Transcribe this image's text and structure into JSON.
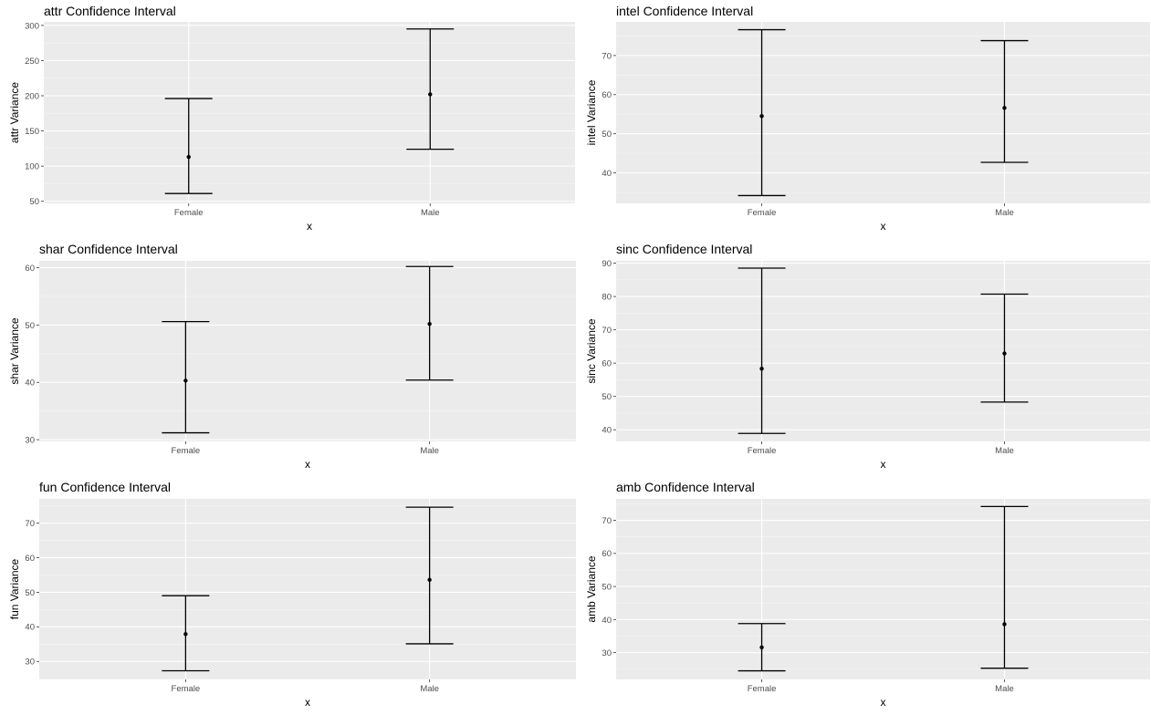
{
  "colors": {
    "panel_bg": "#EBEBEB",
    "grid_major": "#FFFFFF",
    "grid_minor": "#F5F5F5",
    "marks": "#000000",
    "tick_label": "#4D4D4D"
  },
  "chart_data": [
    {
      "type": "errorbar",
      "title": "attr Confidence Interval",
      "xlabel": "x",
      "ylabel": "attr Variance",
      "categories": [
        "Female",
        "Male"
      ],
      "yticks": [
        50,
        100,
        150,
        200,
        250,
        300
      ],
      "ylim": [
        47,
        305
      ],
      "points": [
        {
          "category": "Female",
          "value": 113,
          "lower": 61,
          "upper": 196
        },
        {
          "category": "Male",
          "value": 202,
          "lower": 124,
          "upper": 295
        }
      ],
      "grid": true
    },
    {
      "type": "errorbar",
      "title": "intel Confidence Interval",
      "xlabel": "x",
      "ylabel": "intel Variance",
      "categories": [
        "Female",
        "Male"
      ],
      "yticks": [
        40,
        50,
        60,
        70
      ],
      "ylim": [
        32.2,
        78.6
      ],
      "points": [
        {
          "category": "Female",
          "value": 54.5,
          "lower": 34.2,
          "upper": 76.6
        },
        {
          "category": "Male",
          "value": 56.6,
          "lower": 42.7,
          "upper": 73.8
        }
      ],
      "grid": true
    },
    {
      "type": "errorbar",
      "title": "shar Confidence Interval",
      "xlabel": "x",
      "ylabel": "shar Variance",
      "categories": [
        "Female",
        "Male"
      ],
      "yticks": [
        30,
        40,
        50,
        60
      ],
      "ylim": [
        29.7,
        61.2
      ],
      "points": [
        {
          "category": "Female",
          "value": 40.3,
          "lower": 31.2,
          "upper": 50.6
        },
        {
          "category": "Male",
          "value": 50.2,
          "lower": 40.4,
          "upper": 60.2
        }
      ],
      "grid": true
    },
    {
      "type": "errorbar",
      "title": "sinc Confidence Interval",
      "xlabel": "x",
      "ylabel": "sinc Variance",
      "categories": [
        "Female",
        "Male"
      ],
      "yticks": [
        40,
        50,
        60,
        70,
        80,
        90
      ],
      "ylim": [
        36.5,
        90.7
      ],
      "points": [
        {
          "category": "Female",
          "value": 58.3,
          "lower": 38.9,
          "upper": 88.5
        },
        {
          "category": "Male",
          "value": 62.9,
          "lower": 48.3,
          "upper": 80.7
        }
      ],
      "grid": true
    },
    {
      "type": "errorbar",
      "title": "fun Confidence Interval",
      "xlabel": "x",
      "ylabel": "fun Variance",
      "categories": [
        "Female",
        "Male"
      ],
      "yticks": [
        30,
        40,
        50,
        60,
        70
      ],
      "ylim": [
        24.8,
        77.0
      ],
      "points": [
        {
          "category": "Female",
          "value": 37.9,
          "lower": 27.3,
          "upper": 49.0
        },
        {
          "category": "Male",
          "value": 53.6,
          "lower": 35.1,
          "upper": 74.6
        }
      ],
      "grid": true
    },
    {
      "type": "errorbar",
      "title": "amb Confidence Interval",
      "xlabel": "x",
      "ylabel": "amb Variance",
      "categories": [
        "Female",
        "Male"
      ],
      "yticks": [
        30,
        40,
        50,
        60,
        70
      ],
      "ylim": [
        21.9,
        76.5
      ],
      "points": [
        {
          "category": "Female",
          "value": 31.6,
          "lower": 24.5,
          "upper": 38.8
        },
        {
          "category": "Male",
          "value": 38.6,
          "lower": 25.3,
          "upper": 74.2
        }
      ],
      "grid": true
    }
  ]
}
